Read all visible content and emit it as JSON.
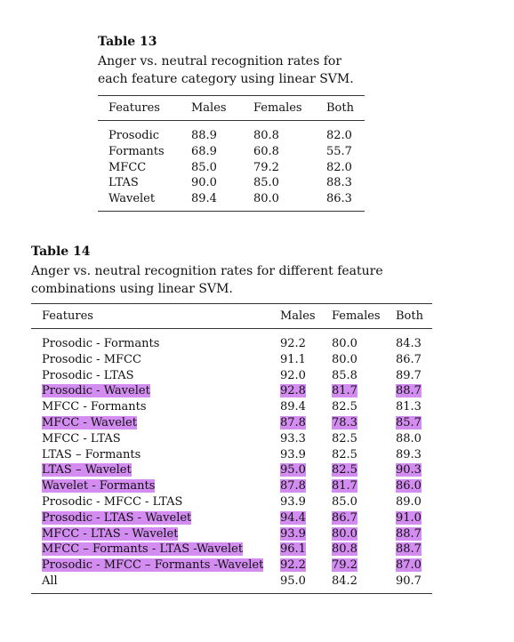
{
  "table13": {
    "number": "Table 13",
    "caption": "Anger vs. neutral recognition rates for each feature category using linear SVM.",
    "headers": [
      "Features",
      "Males",
      "Females",
      "Both"
    ],
    "rows": [
      [
        "Prosodic",
        "88.9",
        "80.8",
        "82.0"
      ],
      [
        "Formants",
        "68.9",
        "60.8",
        "55.7"
      ],
      [
        "MFCC",
        "85.0",
        "79.2",
        "82.0"
      ],
      [
        "LTAS",
        "90.0",
        "85.0",
        "88.3"
      ],
      [
        "Wavelet",
        "89.4",
        "80.0",
        "86.3"
      ]
    ]
  },
  "table14": {
    "number": "Table 14",
    "caption": "Anger vs. neutral recognition rates for different feature combinations using linear SVM.",
    "headers": [
      "Features",
      "Males",
      "Females",
      "Both"
    ],
    "highlight_color": "#d38cf0",
    "rows": [
      {
        "cells": [
          "Prosodic - Formants",
          "92.2",
          "80.0",
          "84.3"
        ],
        "highlight": false
      },
      {
        "cells": [
          "Prosodic - MFCC",
          "91.1",
          "80.0",
          "86.7"
        ],
        "highlight": false
      },
      {
        "cells": [
          "Prosodic - LTAS",
          "92.0",
          "85.8",
          "89.7"
        ],
        "highlight": false
      },
      {
        "cells": [
          "Prosodic - Wavelet",
          "92.8",
          "81.7",
          "88.7"
        ],
        "highlight": true
      },
      {
        "cells": [
          "MFCC - Formants",
          "89.4",
          "82.5",
          "81.3"
        ],
        "highlight": false
      },
      {
        "cells": [
          "MFCC - Wavelet",
          "87.8",
          "78.3",
          "85.7"
        ],
        "highlight": true
      },
      {
        "cells": [
          "MFCC - LTAS",
          "93.3",
          "82.5",
          "88.0"
        ],
        "highlight": false
      },
      {
        "cells": [
          "LTAS – Formants",
          "93.9",
          "82.5",
          "89.3"
        ],
        "highlight": false
      },
      {
        "cells": [
          "LTAS – Wavelet",
          "95.0",
          "82.5",
          "90.3"
        ],
        "highlight": true
      },
      {
        "cells": [
          "Wavelet - Formants",
          "87.8",
          "81.7",
          "86.0"
        ],
        "highlight": true
      },
      {
        "cells": [
          "Prosodic - MFCC - LTAS",
          "93.9",
          "85.0",
          "89.0"
        ],
        "highlight": false
      },
      {
        "cells": [
          "Prosodic - LTAS - Wavelet",
          "94.4",
          "86.7",
          "91.0"
        ],
        "highlight": true
      },
      {
        "cells": [
          "MFCC - LTAS - Wavelet",
          "93.9",
          "80.0",
          "88.7"
        ],
        "highlight": true
      },
      {
        "cells": [
          "MFCC – Formants - LTAS -Wavelet",
          "96.1",
          "80.8",
          "88.7"
        ],
        "highlight": true
      },
      {
        "cells": [
          "Prosodic - MFCC – Formants -Wavelet",
          "92.2",
          "79.2",
          "87.0"
        ],
        "highlight": true
      },
      {
        "cells": [
          "All",
          "95.0",
          "84.2",
          "90.7"
        ],
        "highlight": false
      }
    ]
  }
}
